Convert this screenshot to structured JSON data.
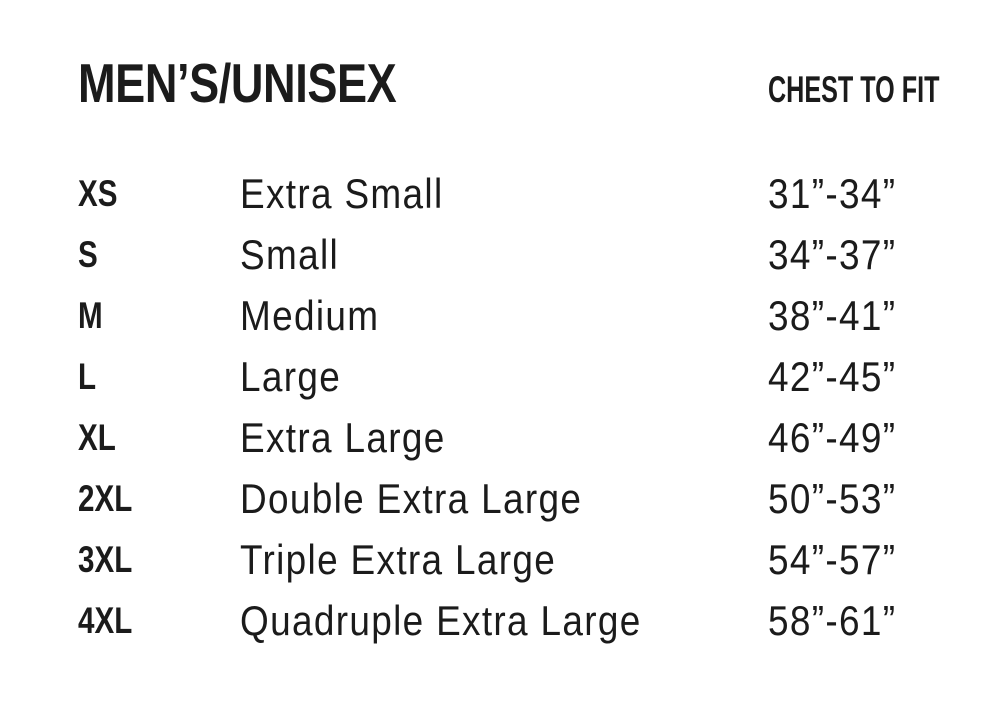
{
  "header": {
    "title": "MEN’S/UNISEX",
    "chest_to_fit_label": "CHEST TO FIT"
  },
  "colors": {
    "text": "#1b1b1b",
    "background": "#ffffff"
  },
  "chart_data": {
    "type": "table",
    "title": "MEN’S/UNISEX",
    "columns": [
      "size_code",
      "size_name",
      "chest_to_fit"
    ],
    "column_headers": [
      "",
      "",
      "CHEST TO FIT"
    ],
    "rows": [
      {
        "code": "XS",
        "name": "Extra Small",
        "chest": "31”-34”"
      },
      {
        "code": "S",
        "name": "Small",
        "chest": "34”-37”"
      },
      {
        "code": "M",
        "name": "Medium",
        "chest": "38”-41”"
      },
      {
        "code": "L",
        "name": "Large",
        "chest": "42”-45”"
      },
      {
        "code": "XL",
        "name": "Extra Large",
        "chest": "46”-49”"
      },
      {
        "code": "2XL",
        "name": "Double Extra Large",
        "chest": "50”-53”"
      },
      {
        "code": "3XL",
        "name": "Triple Extra Large",
        "chest": "54”-57”"
      },
      {
        "code": "4XL",
        "name": "Quadruple Extra Large",
        "chest": "58”-61”"
      }
    ]
  }
}
